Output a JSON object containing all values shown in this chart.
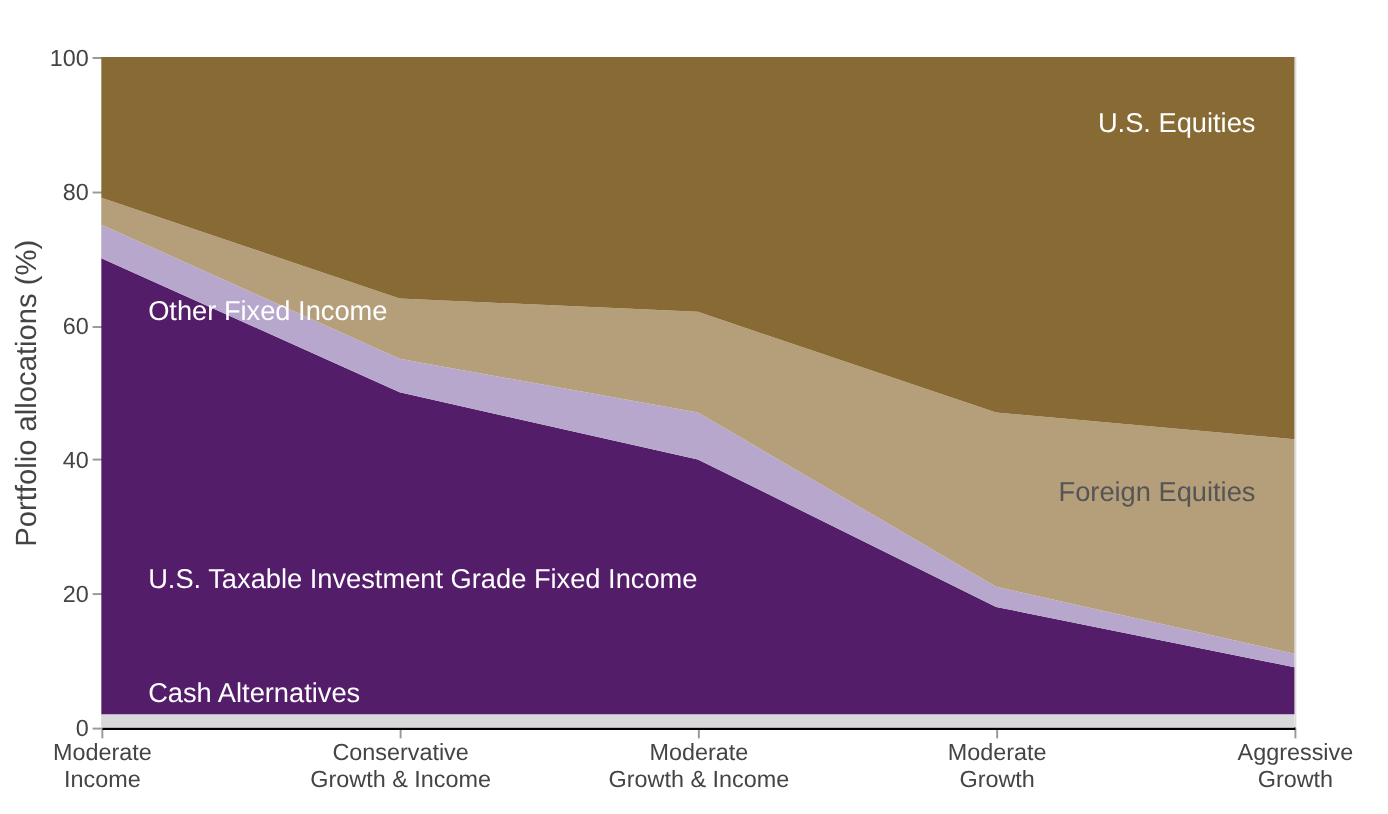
{
  "chart_data": {
    "type": "area",
    "stacked": true,
    "ylabel": "Portfolio allocations (%)",
    "categories": [
      "Moderate\nIncome",
      "Conservative\nGrowth & Income",
      "Moderate\nGrowth & Income",
      "Moderate\nGrowth",
      "Aggressive\nGrowth"
    ],
    "series": [
      {
        "name": "Cash Alternatives",
        "color": "#d9d9dc",
        "values": [
          2,
          2,
          2,
          2,
          2
        ]
      },
      {
        "name": "U.S. Taxable Investment Grade Fixed Income",
        "color": "#541d6a",
        "values": [
          68,
          48,
          38,
          16,
          7
        ]
      },
      {
        "name": "Other Fixed Income",
        "color": "#b7a7cc",
        "values": [
          5,
          5,
          7,
          3,
          2
        ]
      },
      {
        "name": "Foreign Equities",
        "color": "#b59f7a",
        "values": [
          4,
          9,
          15,
          26,
          32
        ]
      },
      {
        "name": "U.S. Equities",
        "color": "#876a34",
        "values": [
          21,
          36,
          38,
          53,
          57
        ]
      }
    ],
    "ylim": [
      0,
      100
    ],
    "yticks": [
      0,
      20,
      40,
      60,
      80,
      100
    ],
    "grid": false,
    "legend": false
  }
}
